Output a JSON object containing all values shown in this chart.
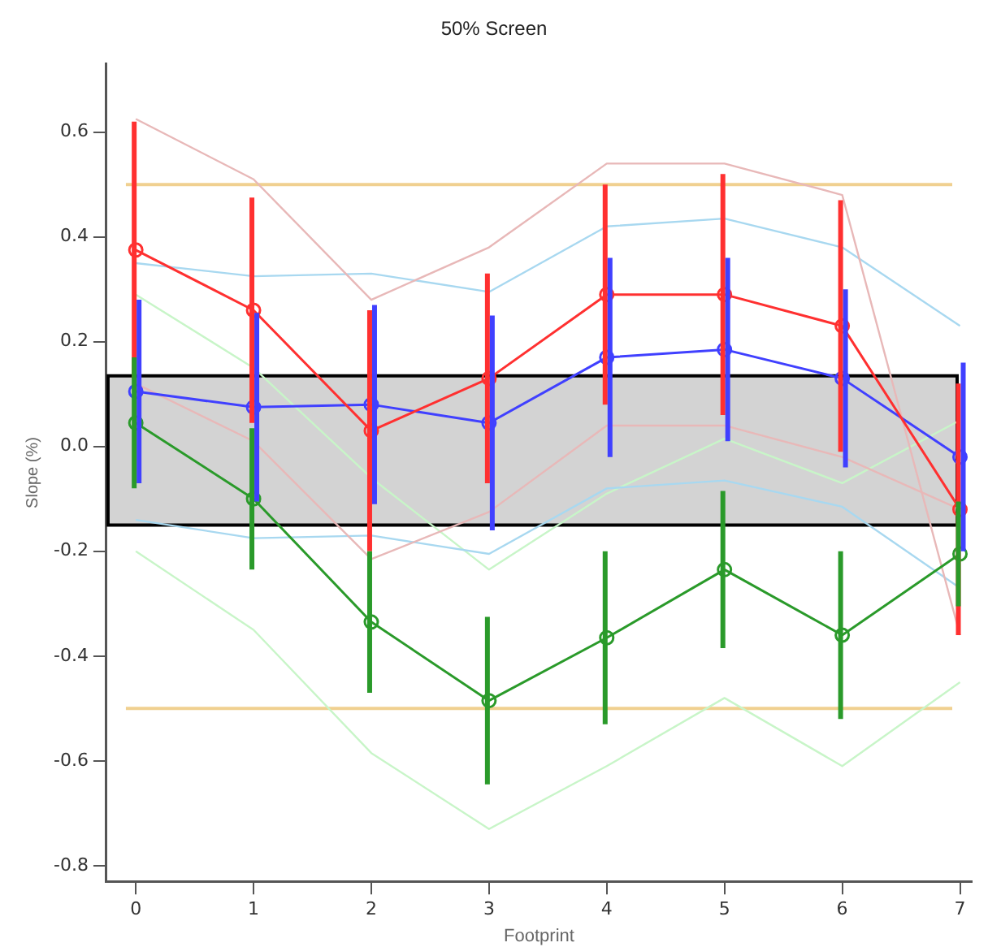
{
  "chart_data": {
    "type": "line",
    "title": "50% Screen",
    "xlabel": "Footprint",
    "ylabel": "Slope (%)",
    "x": [
      0,
      1,
      2,
      3,
      4,
      5,
      6,
      7
    ],
    "xlim": [
      -0.25,
      7.1
    ],
    "xticks": [
      0,
      1,
      2,
      3,
      4,
      5,
      6,
      7
    ],
    "ylim": [
      -0.83,
      0.73
    ],
    "yticks": [
      -0.8,
      -0.6,
      -0.4,
      -0.2,
      {
        "value": 0,
        "label": "0.0"
      },
      0.2,
      0.4,
      0.6
    ],
    "grid": false,
    "legend": false,
    "marker": "circle",
    "line_style": "solid",
    "series": [
      {
        "color": "#e8b8b8",
        "marker": "none",
        "values": [
          0.625,
          0.51,
          0.28,
          0.38,
          0.54,
          0.54,
          0.48,
          -0.36
        ]
      },
      {
        "color": "#e8b8b8",
        "marker": "none",
        "values": [
          0.12,
          0.01,
          -0.215,
          -0.125,
          0.04,
          0.04,
          -0.02,
          -0.12
        ]
      },
      {
        "color": "#a8d8f0",
        "marker": "none",
        "values": [
          0.35,
          0.325,
          0.33,
          0.295,
          0.42,
          0.435,
          0.38,
          0.23
        ]
      },
      {
        "color": "#a8d8f0",
        "marker": "none",
        "values": [
          -0.14,
          -0.175,
          -0.17,
          -0.205,
          -0.08,
          -0.065,
          -0.115,
          -0.27
        ]
      },
      {
        "color": "#c8f5c8",
        "marker": "none",
        "values": [
          0.29,
          0.15,
          -0.06,
          -0.235,
          -0.09,
          0.015,
          -0.07,
          0.05
        ]
      },
      {
        "color": "#c8f5c8",
        "marker": "none",
        "values": [
          -0.2,
          -0.35,
          -0.585,
          -0.73,
          -0.61,
          -0.48,
          -0.61,
          -0.45
        ]
      },
      {
        "color": "#ff3030",
        "values": [
          0.375,
          0.26,
          0.03,
          0.13,
          0.29,
          0.29,
          0.23,
          -0.12
        ],
        "errors": [
          0.245,
          0.215,
          0.23,
          0.2,
          0.21,
          0.23,
          0.24,
          0.24
        ]
      },
      {
        "color": "#4040ff",
        "values": [
          0.105,
          0.075,
          0.08,
          0.045,
          0.17,
          0.185,
          0.13,
          -0.02
        ],
        "errors": [
          0.175,
          0.18,
          0.19,
          0.205,
          0.19,
          0.175,
          0.17,
          0.18
        ]
      },
      {
        "color": "#2a9a2a",
        "values": [
          0.045,
          -0.1,
          -0.335,
          -0.485,
          -0.365,
          -0.235,
          -0.36,
          -0.205
        ],
        "errors": [
          0.125,
          0.135,
          0.135,
          0.16,
          0.165,
          0.15,
          0.16,
          0.1
        ]
      }
    ],
    "ref_lines": [
      {
        "axis": "y",
        "value": 0.5,
        "color": "#f0d090"
      },
      {
        "axis": "y",
        "value": -0.5,
        "color": "#f0d090"
      }
    ],
    "bands": [
      {
        "axis": "y",
        "from": -0.15,
        "to": 0.135,
        "color": "#d3d3d3"
      }
    ]
  }
}
